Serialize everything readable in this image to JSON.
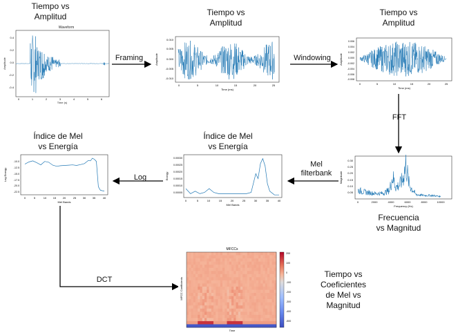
{
  "titles": {
    "p1": [
      "Tiempo vs",
      "Amplitud"
    ],
    "p2": [
      "Tiempo vs",
      "Amplitud"
    ],
    "p3": [
      "Tiempo vs",
      "Amplitud"
    ],
    "p4": [
      "Frecuencia",
      "vs Magnitud"
    ],
    "p5": [
      "Índice de Mel",
      "vs Energía"
    ],
    "p6": [
      "Índice de Mel",
      "vs Energía"
    ],
    "p7": [
      "Tiempo vs",
      "Coeficientes",
      "de Mel vs",
      "Magnitud"
    ]
  },
  "steps": {
    "framing": "Framing",
    "windowing": "Windowing",
    "fft": "FFT",
    "mel": [
      "Mel",
      "filterbank"
    ],
    "log": "Log",
    "dct": "DCT"
  },
  "plots": {
    "waveform": {
      "title": "Waveform",
      "xlabel": "Time (s)",
      "ylabel": "Amplitude",
      "xticks": [
        "0",
        "1",
        "2",
        "3",
        "4",
        "5",
        "6"
      ],
      "yticks": [
        "0.4",
        "0.2",
        "0.0",
        "-0.2",
        "-0.4"
      ]
    },
    "framed": {
      "xlabel": "Time (ms)",
      "ylabel": "Amplitude",
      "xticks": [
        "0",
        "5",
        "10",
        "15",
        "20",
        "25"
      ],
      "yticks": [
        "0.010",
        "0.005",
        "0.000",
        "-0.005",
        "-0.010"
      ]
    },
    "windowed": {
      "xlabel": "Time (ms)",
      "ylabel": "Amplitude",
      "xticks": [
        "0",
        "5",
        "10",
        "15",
        "20",
        "25"
      ],
      "yticks": [
        "0.006",
        "0.004",
        "0.002",
        "0.000",
        "-0.002",
        "-0.004",
        "-0.006",
        "-0.008"
      ]
    },
    "fft": {
      "xlabel": "Frequency (Hz)",
      "ylabel": "Magnitude",
      "xticks": [
        "0",
        "2000",
        "4000",
        "6000",
        "8000",
        "10000"
      ],
      "yticks": [
        "0.30",
        "0.25",
        "0.20",
        "0.15",
        "0.10",
        "0.05"
      ]
    },
    "mel_energy": {
      "xlabel": "Mel Bands",
      "ylabel": "Energy",
      "xticks": [
        "0",
        "5",
        "10",
        "15",
        "20",
        "25",
        "30",
        "35",
        "40"
      ],
      "yticks": [
        "0.00030",
        "0.00025",
        "0.00020",
        "0.00015",
        "0.00010",
        "0.00005"
      ]
    },
    "log_energy": {
      "xlabel": "Mel Bands",
      "ylabel": "Log Energy",
      "xticks": [
        "0",
        "5",
        "10",
        "15",
        "20",
        "25",
        "30",
        "35",
        "40"
      ],
      "yticks": [
        "-10.0",
        "-12.5",
        "-15.0",
        "-17.5",
        "-20.0",
        "-22.5"
      ]
    },
    "mfcc": {
      "title": "MFCCs",
      "xlabel": "Time",
      "ylabel": "MFCC Coefficients",
      "cbticks": [
        "200",
        "100",
        "0",
        "-100",
        "-200",
        "-300",
        "-400",
        "-500"
      ]
    }
  },
  "chart_data": [
    {
      "type": "line",
      "name": "waveform",
      "xlim": [
        0,
        6.5
      ],
      "ylim": [
        -0.5,
        0.5
      ]
    },
    {
      "type": "line",
      "name": "framed",
      "xlim": [
        -1,
        26
      ],
      "ylim": [
        -0.012,
        0.012
      ]
    },
    {
      "type": "line",
      "name": "windowed",
      "xlim": [
        -1,
        26
      ],
      "ylim": [
        -0.009,
        0.007
      ]
    },
    {
      "type": "line",
      "name": "fft",
      "xlim": [
        0,
        11000
      ],
      "ylim": [
        0,
        0.33
      ],
      "x": [
        0,
        1000,
        2000,
        3000,
        3800,
        4200,
        4600,
        5000,
        5400,
        5800,
        6200,
        7000,
        8000,
        9000,
        10000
      ],
      "y": [
        0.07,
        0.05,
        0.04,
        0.04,
        0.07,
        0.2,
        0.1,
        0.12,
        0.17,
        0.32,
        0.12,
        0.03,
        0.02,
        0.02,
        0.01
      ]
    },
    {
      "type": "line",
      "name": "mel_energy",
      "xlim": [
        -1,
        41
      ],
      "ylim": [
        0,
        0.00032
      ],
      "x": [
        0,
        2,
        4,
        6,
        8,
        10,
        12,
        14,
        16,
        18,
        20,
        22,
        24,
        26,
        28,
        30,
        31,
        32,
        33,
        34,
        35,
        36,
        38,
        40
      ],
      "y": [
        6e-05,
        2e-05,
        4e-05,
        2e-05,
        3e-05,
        6e-05,
        3e-05,
        2e-05,
        2e-05,
        2e-05,
        2e-05,
        2e-05,
        2e-05,
        2e-05,
        3e-05,
        0.00018,
        0.00014,
        0.00026,
        0.0003,
        0.00024,
        0.0001,
        4e-05,
        1e-05,
        1e-05
      ]
    },
    {
      "type": "line",
      "name": "log_energy",
      "xlim": [
        -1,
        41
      ],
      "ylim": [
        -23,
        -9
      ],
      "x": [
        0,
        2,
        4,
        6,
        8,
        10,
        12,
        14,
        16,
        18,
        20,
        22,
        24,
        26,
        28,
        30,
        31,
        32,
        33,
        34,
        35,
        36,
        37,
        38,
        39,
        40
      ],
      "y": [
        -12.0,
        -11.2,
        -10.8,
        -11.5,
        -12.3,
        -11.0,
        -11.3,
        -12.4,
        -12.8,
        -12.6,
        -12.5,
        -12.4,
        -12.3,
        -12.5,
        -12.2,
        -11.8,
        -11.2,
        -10.6,
        -10.8,
        -9.8,
        -10.2,
        -11.0,
        -20.5,
        -21.8,
        -22.0,
        -22.1
      ]
    },
    {
      "type": "heatmap",
      "name": "mfcc",
      "clim": [
        -550,
        220
      ]
    }
  ],
  "colors": {
    "line": "#1f77b4",
    "arrow": "#000000"
  }
}
